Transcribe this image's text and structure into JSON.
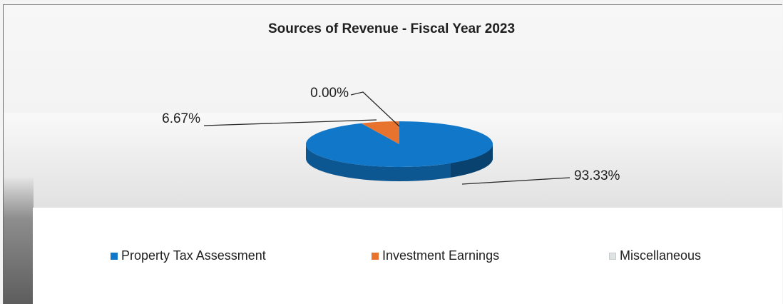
{
  "chart_data": {
    "type": "pie",
    "title": "Sources of Revenue - Fiscal Year 2023",
    "slices": [
      {
        "name": "Property Tax Assessment",
        "value": 93.33,
        "label": "93.33%",
        "color": "#1177c9"
      },
      {
        "name": "Investment Earnings",
        "value": 6.67,
        "label": "6.67%",
        "color": "#e8732e"
      },
      {
        "name": "Miscellaneous",
        "value": 0.0,
        "label": "0.00%",
        "color": "#dfe3e3"
      }
    ],
    "legend_position": "bottom"
  }
}
